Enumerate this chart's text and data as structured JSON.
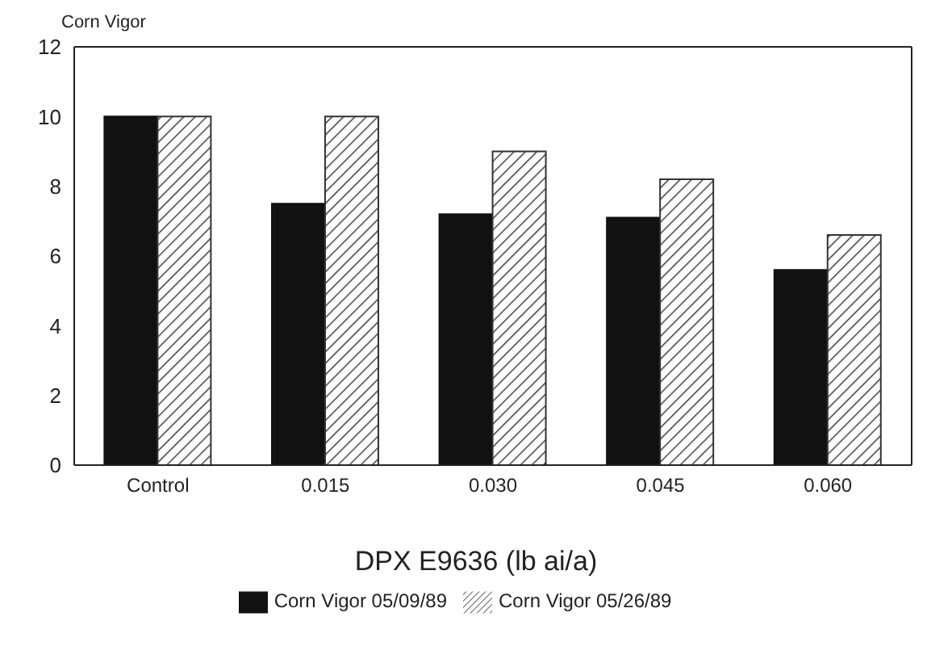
{
  "chart_data": {
    "type": "bar",
    "ylabel": "Corn Vigor",
    "xlabel": "DPX E9636 (lb ai/a)",
    "categories": [
      "Control",
      "0.015",
      "0.030",
      "0.045",
      "0.060"
    ],
    "series": [
      {
        "name": "Corn Vigor 05/09/89",
        "color": "#111111",
        "values": [
          10,
          7.5,
          7.2,
          7.1,
          5.6
        ]
      },
      {
        "name": "Corn Vigor 05/26/89",
        "color": "#333333",
        "values": [
          10,
          10,
          9,
          8.2,
          6.6
        ]
      }
    ],
    "ylim": [
      0,
      12
    ],
    "yticks": [
      0,
      2,
      4,
      6,
      8,
      10,
      12
    ],
    "grid": false,
    "legend": "bottom"
  }
}
